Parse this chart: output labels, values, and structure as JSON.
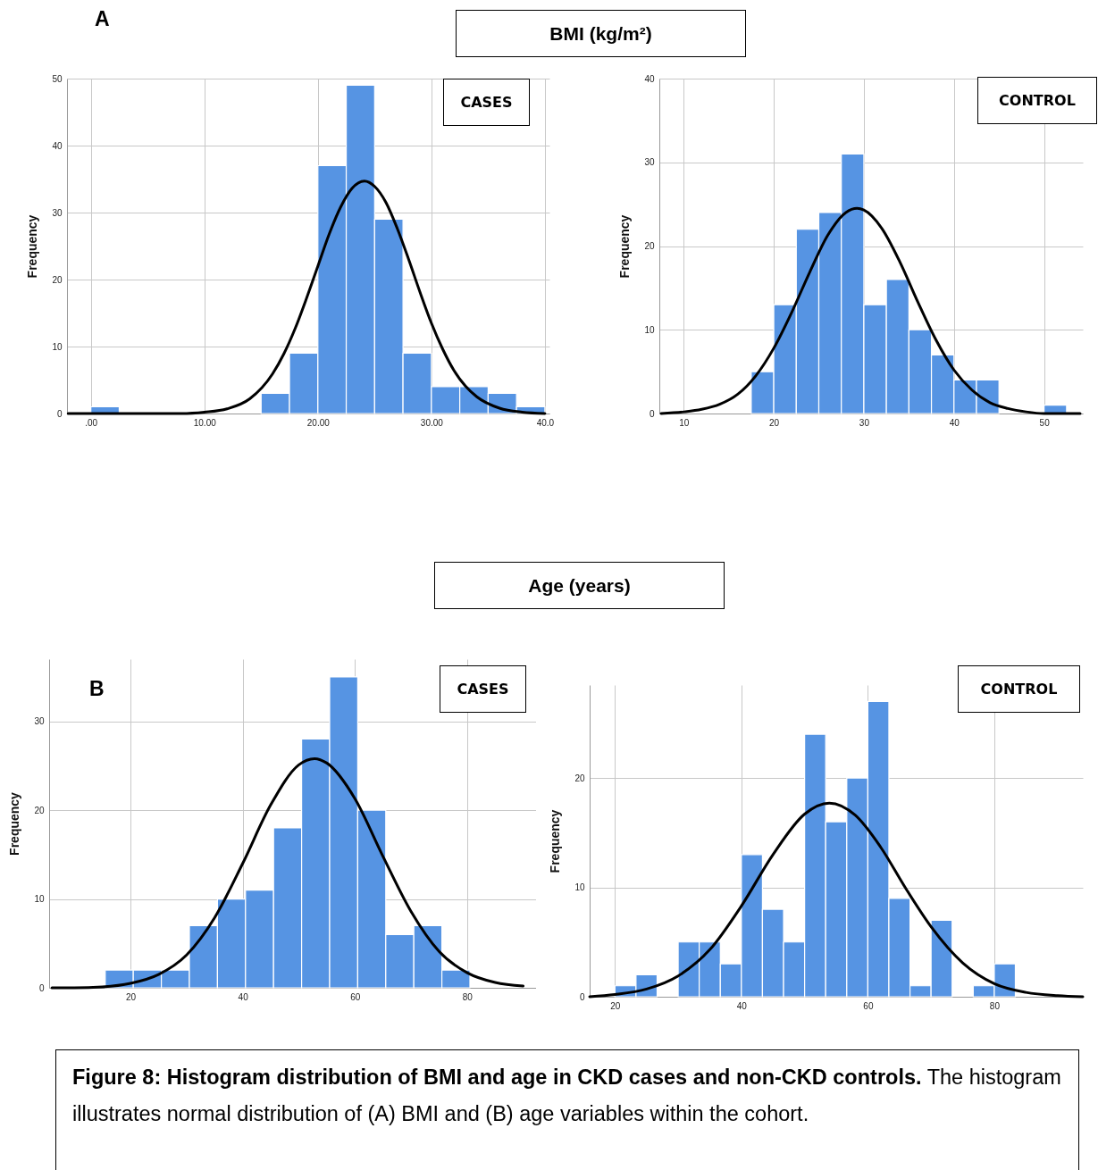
{
  "chart_data": [
    {
      "type": "histogram",
      "title": "CASES",
      "ylabel": "Frequency",
      "annotations": [
        "A",
        "BMI (kg/m²)"
      ],
      "color": "#5694e3",
      "bins": [
        0,
        2.5,
        5,
        7.5,
        10,
        12.5,
        15,
        17.5,
        20,
        22.5,
        25,
        27.5,
        30,
        32.5,
        35,
        37.5,
        40
      ],
      "values": [
        1,
        0,
        0,
        0,
        0,
        0,
        3,
        9,
        37,
        49,
        29,
        9,
        4,
        4,
        3,
        1
      ],
      "series": [
        {
          "type": "line",
          "color": "#000000",
          "x": [
            -2,
            4,
            8,
            10,
            12,
            14,
            16,
            17,
            18,
            19,
            20,
            21,
            22,
            23,
            24.1,
            25,
            26,
            27,
            28,
            29,
            30,
            31,
            32,
            33,
            34,
            36,
            38,
            40
          ],
          "values": [
            0,
            0,
            0,
            0.2,
            0.7,
            2.2,
            5.9,
            8.9,
            12.7,
            17.2,
            22.0,
            26.8,
            30.8,
            33.6,
            34.7,
            33.9,
            31.5,
            27.6,
            23.0,
            18.1,
            13.5,
            9.6,
            6.4,
            4.1,
            2.5,
            0.8,
            0.2,
            0
          ]
        }
      ],
      "xlim": [
        -2.1,
        40.4
      ],
      "ylim": [
        0,
        50
      ],
      "xticks": [
        {
          "value": 0,
          "label": ".00"
        },
        {
          "value": 10,
          "label": "10.00"
        },
        {
          "value": 20,
          "label": "20.00"
        },
        {
          "value": 30,
          "label": "30.00"
        },
        {
          "value": 40,
          "label": "40.0"
        }
      ],
      "yticks": [
        0,
        10,
        20,
        30,
        40,
        50
      ],
      "grid": true
    },
    {
      "type": "histogram",
      "title": "CONTROL",
      "ylabel": "Frequency",
      "color": "#5694e3",
      "bins": [
        17.5,
        20,
        22.5,
        25,
        27.5,
        30,
        32.5,
        35,
        37.5,
        40,
        42.5,
        45,
        47.5,
        50,
        52.5
      ],
      "values": [
        5,
        13,
        22,
        24,
        31,
        13,
        16,
        10,
        7,
        4,
        4,
        0,
        0,
        1
      ],
      "series": [
        {
          "type": "line",
          "color": "#000000",
          "x": [
            7.5,
            10,
            12,
            14,
            16,
            18,
            20,
            22,
            24,
            26,
            28,
            29.25,
            30,
            32,
            34,
            36,
            38,
            40,
            42,
            44,
            46,
            48,
            50,
            54
          ],
          "values": [
            0,
            0.2,
            0.5,
            1.1,
            2.3,
            4.5,
            7.8,
            12.1,
            16.9,
            21.3,
            24.0,
            24.5,
            24.3,
            22.1,
            18.1,
            13.3,
            8.8,
            5.2,
            2.8,
            1.3,
            0.6,
            0.2,
            0,
            0
          ]
        }
      ],
      "xlim": [
        7.3,
        54.3
      ],
      "ylim": [
        0,
        40
      ],
      "xticks": [
        10,
        20,
        30,
        40,
        50
      ],
      "yticks": [
        0,
        10,
        20,
        30,
        40
      ],
      "grid": true
    },
    {
      "type": "histogram",
      "title": "CASES",
      "ylabel": "Frequency",
      "annotations": [
        "Age (years)",
        "B"
      ],
      "color": "#5694e3",
      "bins": [
        15.5,
        20.5,
        25.5,
        30.5,
        35.5,
        40.5,
        45.5,
        50.5,
        55.5,
        60.5,
        65.5,
        70.5,
        75.5,
        80.5
      ],
      "values": [
        2,
        2,
        2,
        7,
        10,
        11,
        18,
        28,
        35,
        20,
        6,
        7,
        2
      ],
      "series": [
        {
          "type": "line",
          "color": "#000000",
          "x": [
            6,
            10,
            15,
            20,
            25,
            30,
            35,
            40,
            45,
            50,
            52.8,
            55,
            60,
            65,
            70,
            75,
            80,
            85,
            90
          ],
          "values": [
            0,
            0,
            0.1,
            0.5,
            1.5,
            3.7,
            7.9,
            14.0,
            20.6,
            25.1,
            25.8,
            25.3,
            21.3,
            14.8,
            8.6,
            4.1,
            1.7,
            0.6,
            0.2
          ]
        }
      ],
      "xlim": [
        5.5,
        93.4
      ],
      "ylim": [
        0,
        37
      ],
      "xticks": [
        20,
        40,
        60,
        80
      ],
      "yticks": [
        0,
        10,
        20,
        30
      ],
      "grid": true
    },
    {
      "type": "histogram",
      "title": "CONTROL",
      "ylabel": "Frequency",
      "annotations": [
        "Figure 8: Histogram distribution of BMI and age in CKD cases and non-CKD controls.",
        "The histogram illustrates normal distribution of (A) BMI and (B) age variables within the cohort."
      ],
      "color": "#5694e3",
      "bins": [
        20,
        23.33,
        26.67,
        30,
        33.33,
        36.67,
        40,
        43.33,
        46.67,
        50,
        53.33,
        56.67,
        60,
        63.33,
        66.67,
        70,
        73.33,
        76.67,
        80,
        83.33
      ],
      "values": [
        1,
        2,
        0,
        5,
        5,
        3,
        13,
        8,
        5,
        24,
        16,
        20,
        27,
        9,
        1,
        7,
        0,
        1,
        3
      ],
      "series": [
        {
          "type": "line",
          "color": "#000000",
          "x": [
            16,
            20,
            25,
            30,
            35,
            40,
            45,
            50,
            53.9,
            58,
            62,
            66,
            70,
            75,
            80,
            85,
            90,
            94
          ],
          "values": [
            0,
            0.2,
            0.7,
            1.9,
            4.3,
            8.3,
            13.0,
            16.7,
            17.7,
            16.6,
            13.7,
            9.9,
            6.4,
            3.1,
            1.2,
            0.4,
            0.1,
            0
          ]
        }
      ],
      "xlim": [
        16,
        94
      ],
      "ylim": [
        0,
        28.5
      ],
      "xticks": [
        20,
        40,
        60,
        80
      ],
      "yticks": [
        0,
        10,
        20
      ],
      "grid": true
    }
  ]
}
